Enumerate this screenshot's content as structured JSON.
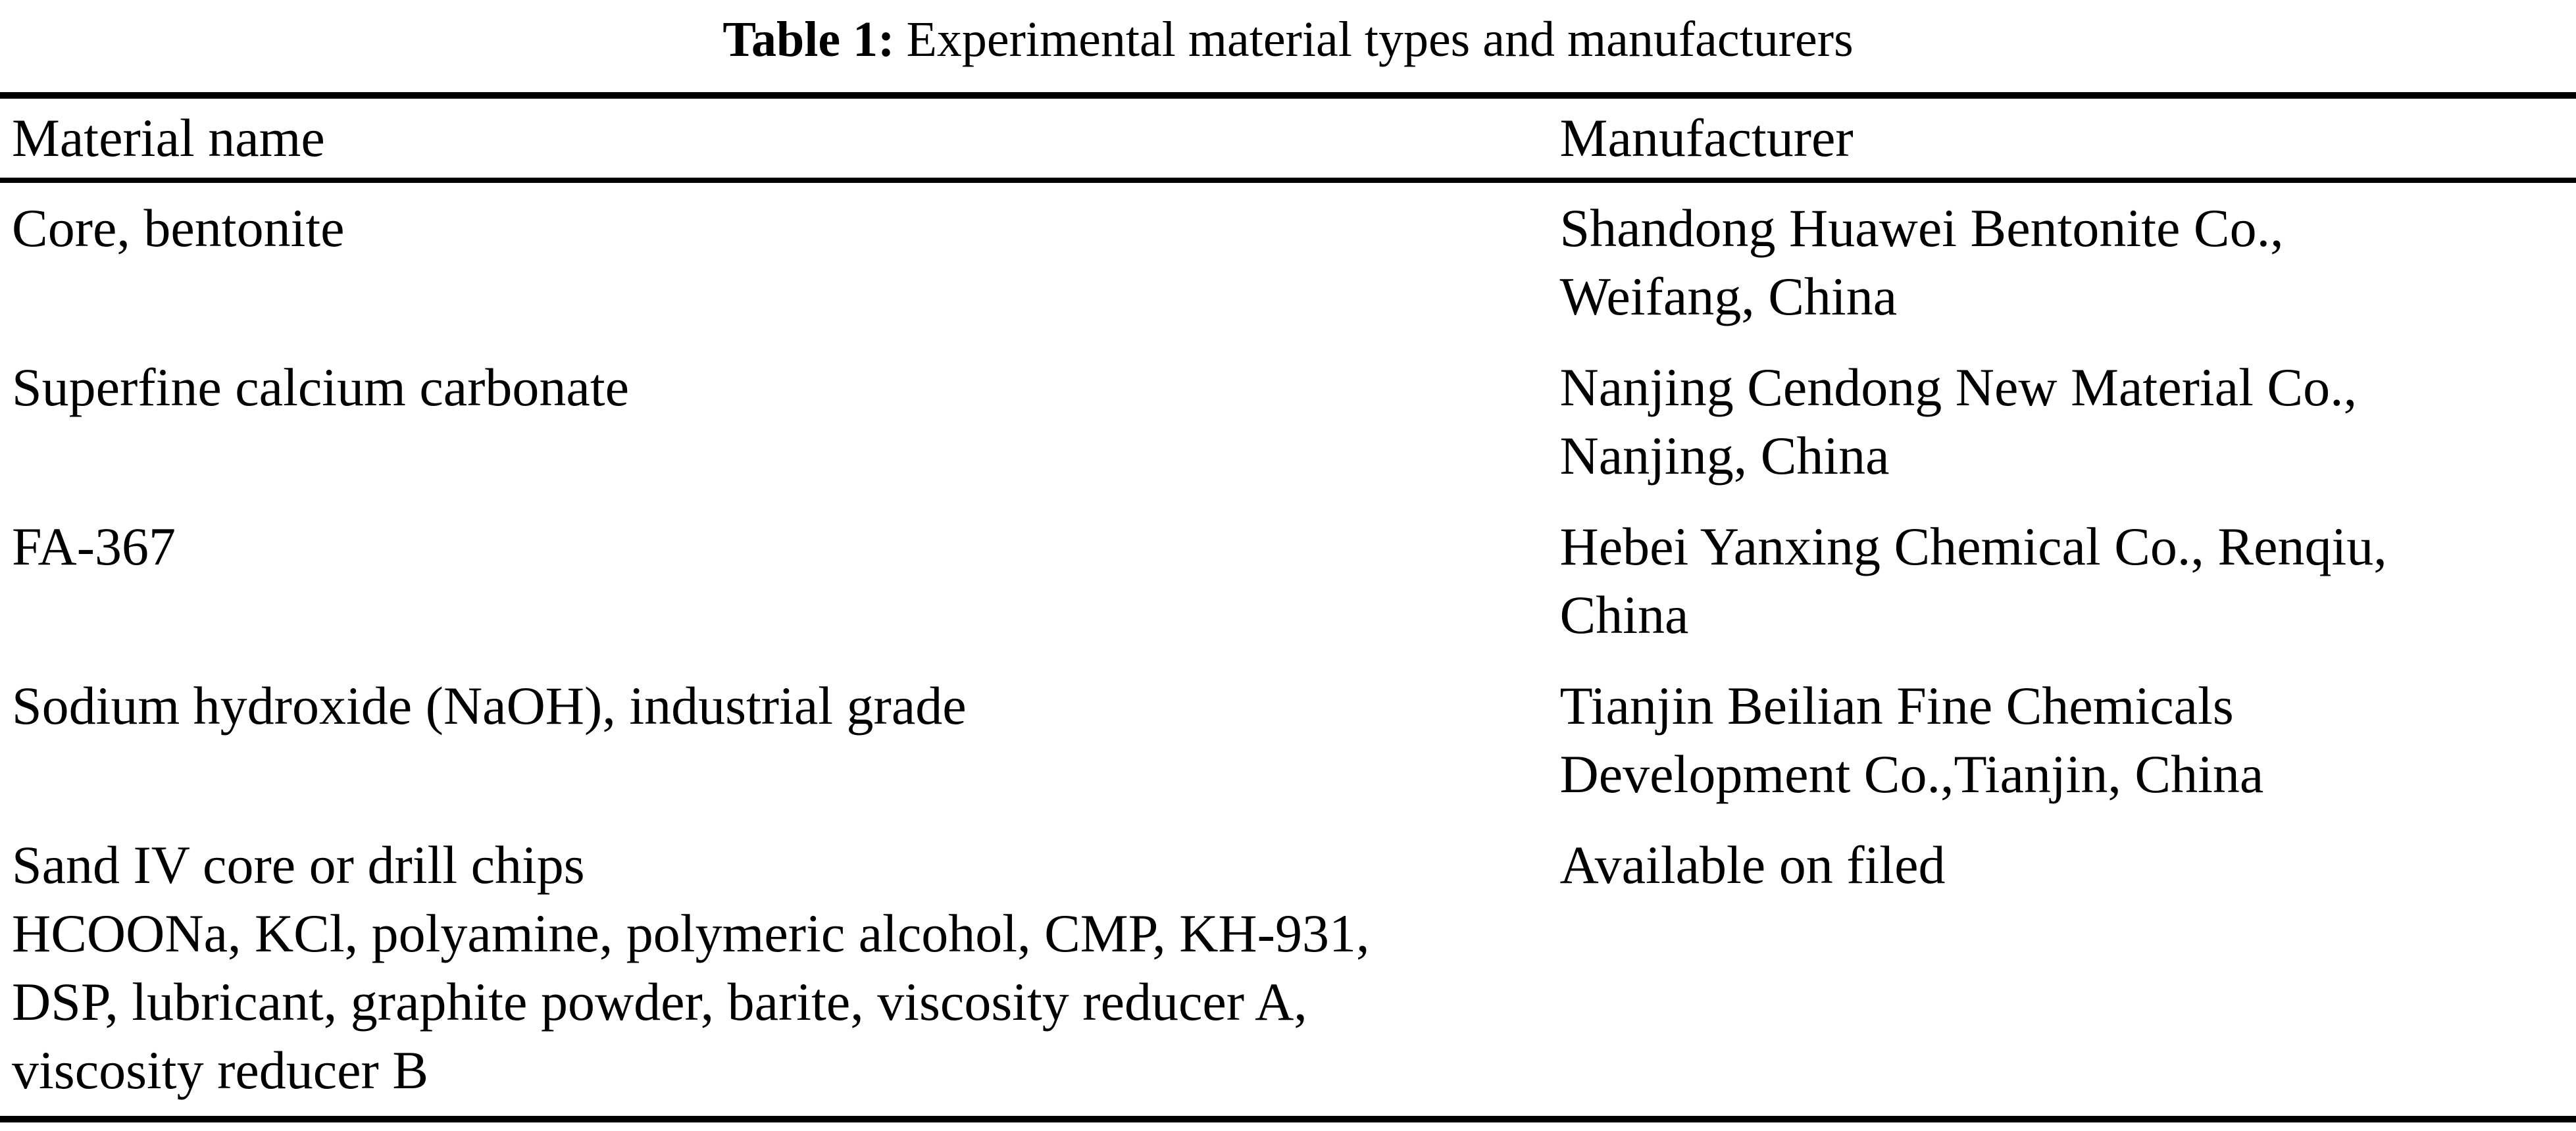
{
  "caption": {
    "label": "Table 1:",
    "text": "Experimental material types and manufacturers"
  },
  "table": {
    "headers": [
      "Material name",
      "Manufacturer"
    ],
    "rows": [
      {
        "material_lines": [
          "Core, bentonite"
        ],
        "manufacturer_lines": [
          "Shandong Huawei Bentonite Co.,",
          "Weifang, China"
        ]
      },
      {
        "material_lines": [
          "Superfine calcium carbonate"
        ],
        "manufacturer_lines": [
          "Nanjing Cendong New Material Co.,",
          "Nanjing, China"
        ]
      },
      {
        "material_lines": [
          "FA-367"
        ],
        "manufacturer_lines": [
          "Hebei Yanxing Chemical Co., Renqiu,",
          "China"
        ]
      },
      {
        "material_lines": [
          "Sodium hydroxide (NaOH), industrial grade"
        ],
        "manufacturer_lines": [
          "Tianjin Beilian Fine Chemicals",
          "Development Co.,Tianjin, China"
        ]
      },
      {
        "material_lines": [
          "Sand IV core or drill chips",
          "HCOONa, KCl, polyamine, polymeric alcohol, CMP, KH-931,",
          "DSP, lubricant, graphite powder, barite, viscosity reducer A,",
          "viscosity reducer B"
        ],
        "manufacturer_lines": [
          "Available on filed"
        ]
      }
    ]
  },
  "colors": {
    "background": "#ffffff",
    "text": "#000000",
    "rule": "#000000"
  }
}
